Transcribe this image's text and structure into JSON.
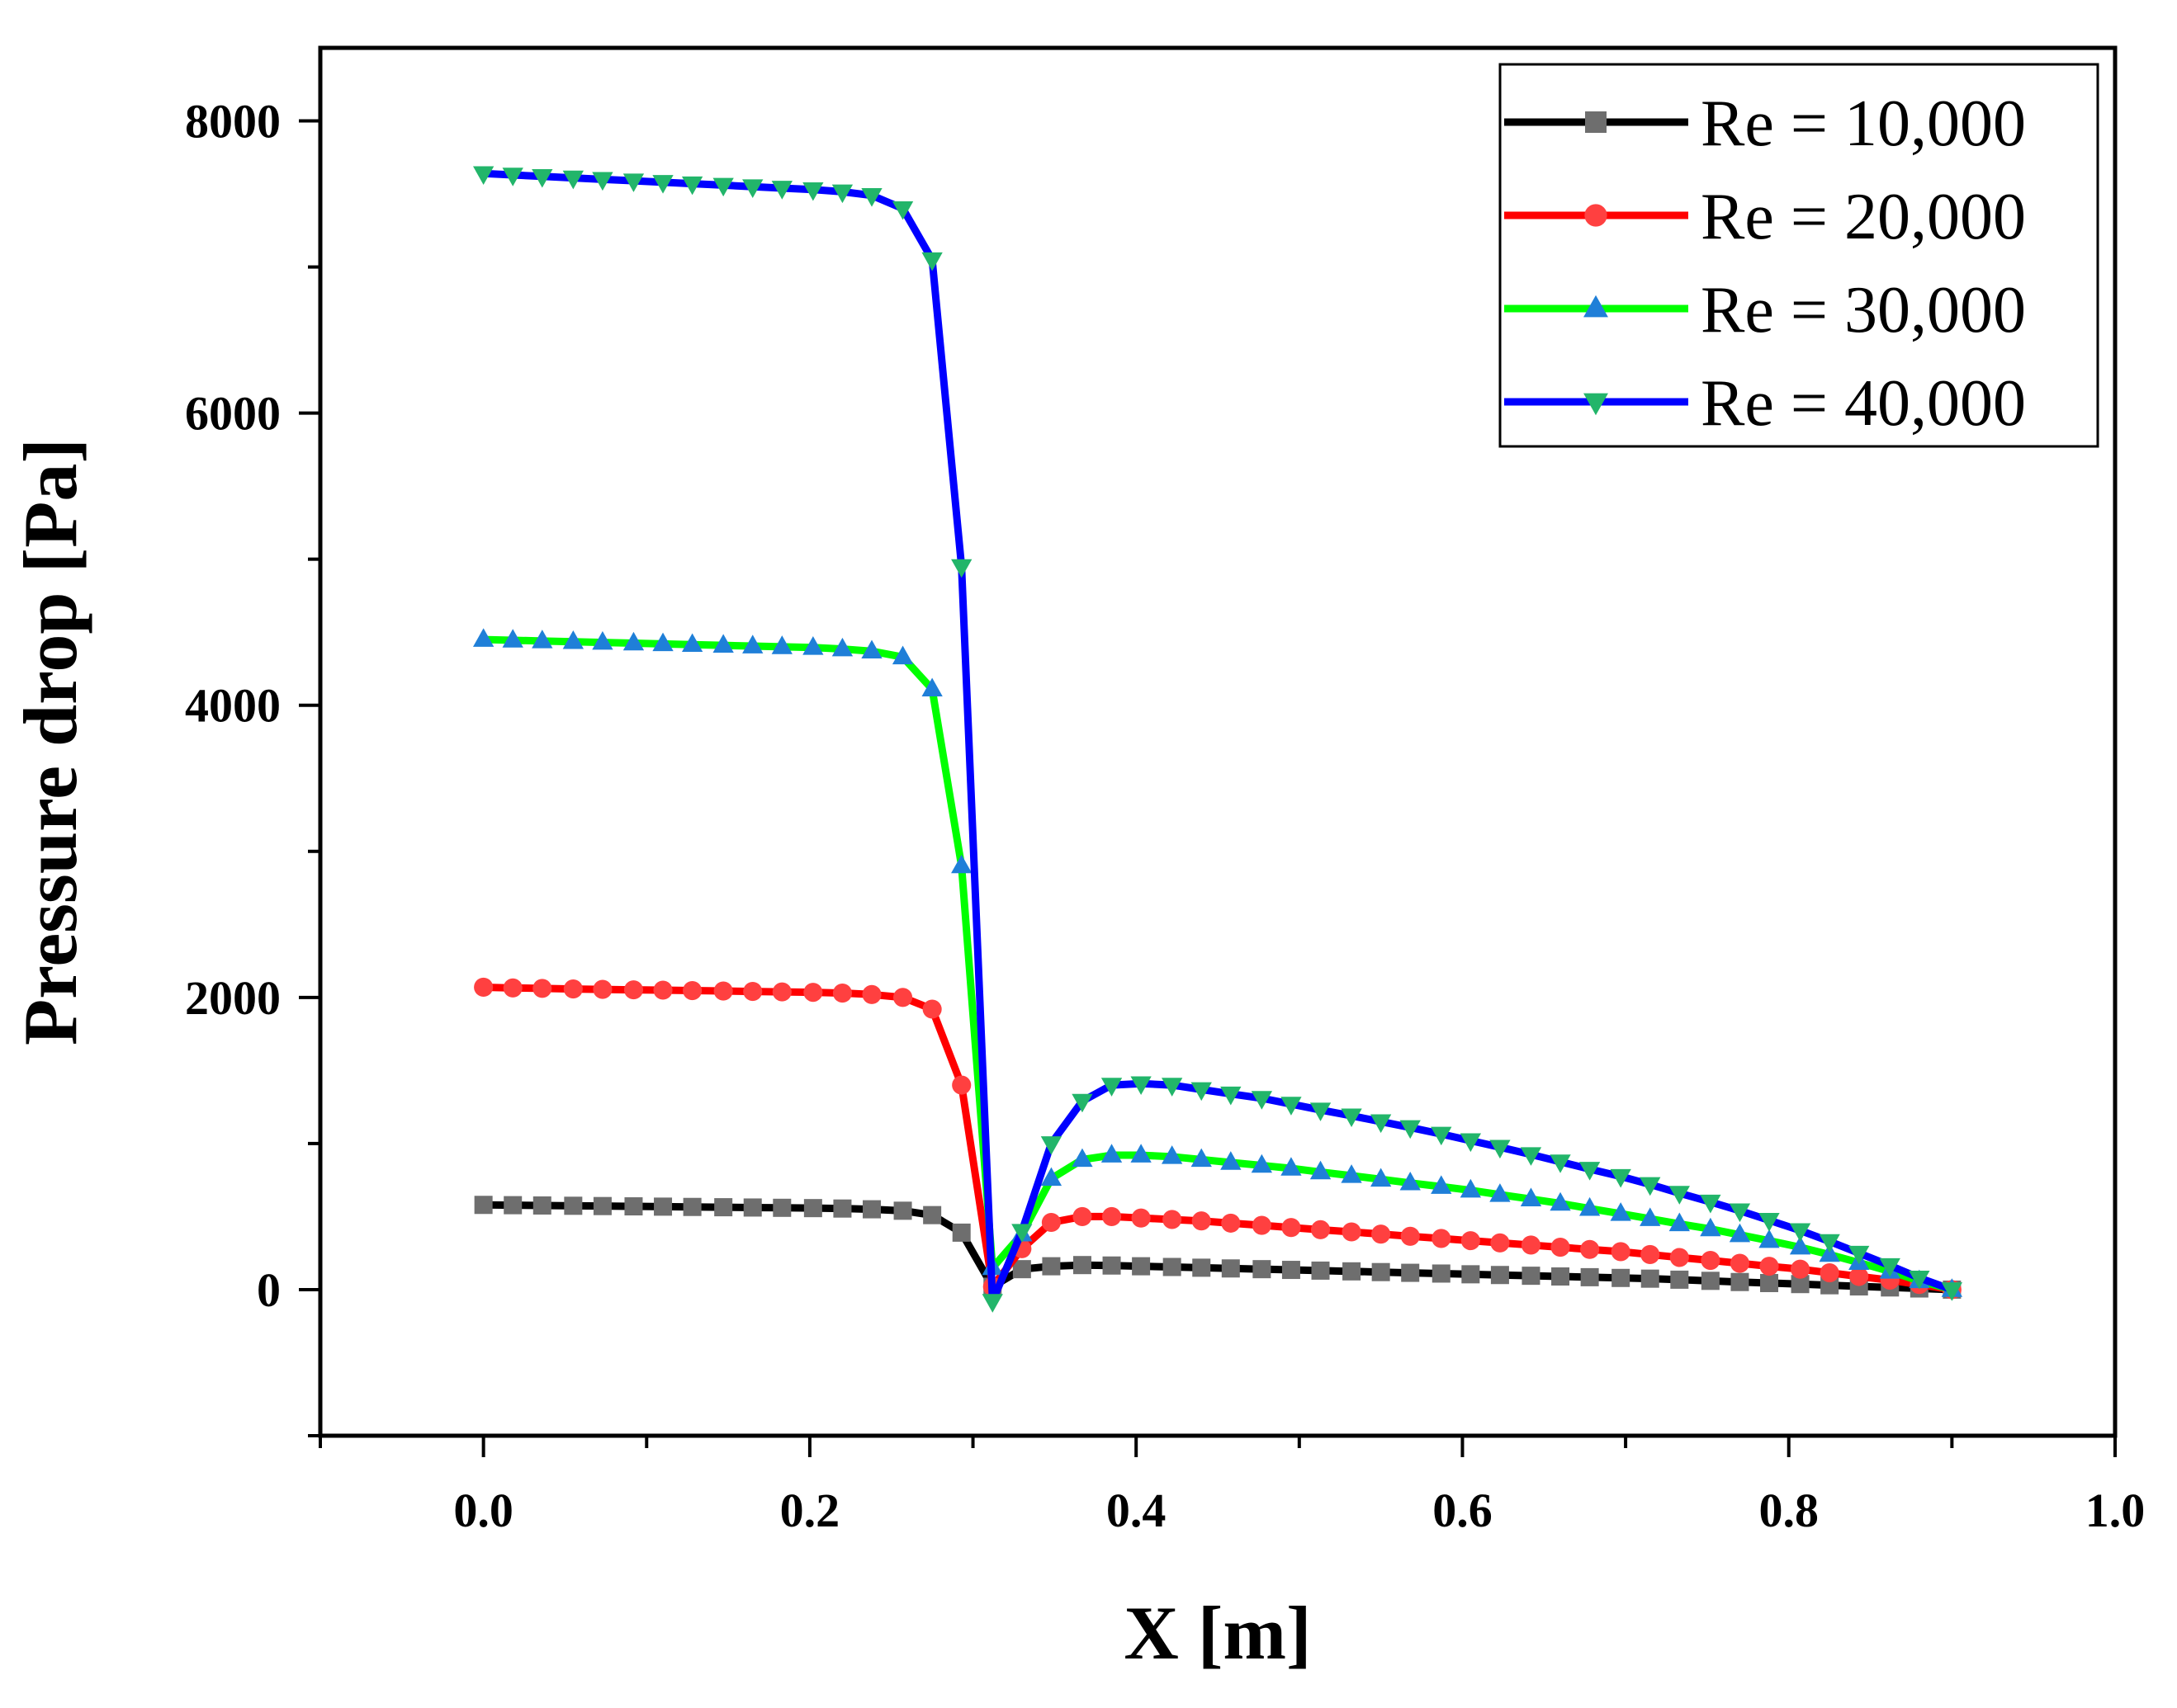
{
  "chart_data": {
    "type": "line",
    "title": "",
    "xlabel": "X [m]",
    "ylabel": "Pressure drop [Pa]",
    "xlim": [
      -0.1,
      1.0
    ],
    "ylim": [
      -1000,
      8500
    ],
    "x_ticks": [
      0.0,
      0.2,
      0.4,
      0.6,
      0.8,
      1.0
    ],
    "x_tick_labels": [
      "0.0",
      "0.2",
      "0.4",
      "0.6",
      "0.8",
      "1.0"
    ],
    "y_ticks": [
      0,
      2000,
      4000,
      6000,
      8000
    ],
    "y_tick_labels": [
      "0",
      "2000",
      "4000",
      "6000",
      "8000"
    ],
    "grid": false,
    "legend_position": "top-right",
    "x": [
      0.0,
      0.018,
      0.036,
      0.055,
      0.073,
      0.092,
      0.11,
      0.128,
      0.147,
      0.165,
      0.183,
      0.202,
      0.22,
      0.238,
      0.257,
      0.275,
      0.293,
      0.312,
      0.33,
      0.348,
      0.367,
      0.385,
      0.403,
      0.422,
      0.44,
      0.458,
      0.477,
      0.495,
      0.513,
      0.532,
      0.55,
      0.568,
      0.587,
      0.605,
      0.623,
      0.642,
      0.66,
      0.678,
      0.697,
      0.715,
      0.733,
      0.752,
      0.77,
      0.788,
      0.807,
      0.825,
      0.843,
      0.862,
      0.88,
      0.9
    ],
    "series": [
      {
        "name": "Re = 10,000",
        "line_color": "#000000",
        "marker": "square",
        "marker_color": "#6e6e6e",
        "values": [
          580,
          578,
          576,
          574,
          572,
          570,
          568,
          566,
          564,
          562,
          560,
          558,
          555,
          550,
          540,
          510,
          390,
          20,
          140,
          160,
          168,
          165,
          160,
          155,
          150,
          145,
          140,
          135,
          130,
          125,
          120,
          115,
          110,
          105,
          100,
          95,
          90,
          85,
          80,
          75,
          68,
          60,
          52,
          45,
          38,
          30,
          22,
          15,
          8,
          0
        ]
      },
      {
        "name": "Re = 20,000",
        "line_color": "#ff0000",
        "marker": "circle",
        "marker_color": "#ff4040",
        "values": [
          2070,
          2065,
          2062,
          2058,
          2055,
          2052,
          2050,
          2047,
          2044,
          2041,
          2038,
          2035,
          2030,
          2020,
          2000,
          1920,
          1400,
          20,
          280,
          460,
          500,
          500,
          490,
          480,
          470,
          455,
          440,
          425,
          410,
          395,
          380,
          365,
          350,
          335,
          320,
          305,
          290,
          275,
          260,
          240,
          220,
          200,
          180,
          160,
          140,
          115,
          90,
          65,
          35,
          0
        ]
      },
      {
        "name": "Re = 30,000",
        "line_color": "#00ff00",
        "marker": "triangle-up",
        "marker_color": "#1f7fd8",
        "values": [
          4450,
          4445,
          4440,
          4435,
          4430,
          4425,
          4420,
          4415,
          4410,
          4405,
          4400,
          4395,
          4385,
          4370,
          4330,
          4110,
          2900,
          150,
          380,
          760,
          890,
          920,
          920,
          910,
          890,
          870,
          850,
          830,
          805,
          780,
          755,
          730,
          705,
          680,
          650,
          620,
          590,
          555,
          520,
          485,
          450,
          415,
          375,
          335,
          290,
          240,
          185,
          125,
          60,
          0
        ]
      },
      {
        "name": "Re = 40,000",
        "line_color": "#0000ff",
        "marker": "triangle-down",
        "marker_color": "#22b56a",
        "values": [
          7640,
          7630,
          7620,
          7610,
          7600,
          7590,
          7580,
          7570,
          7560,
          7550,
          7540,
          7530,
          7515,
          7490,
          7400,
          7050,
          4950,
          -80,
          400,
          1000,
          1290,
          1400,
          1410,
          1400,
          1370,
          1340,
          1310,
          1270,
          1230,
          1190,
          1150,
          1110,
          1065,
          1020,
          975,
          925,
          875,
          825,
          775,
          720,
          660,
          600,
          540,
          475,
          405,
          330,
          250,
          165,
          80,
          0
        ]
      }
    ]
  }
}
